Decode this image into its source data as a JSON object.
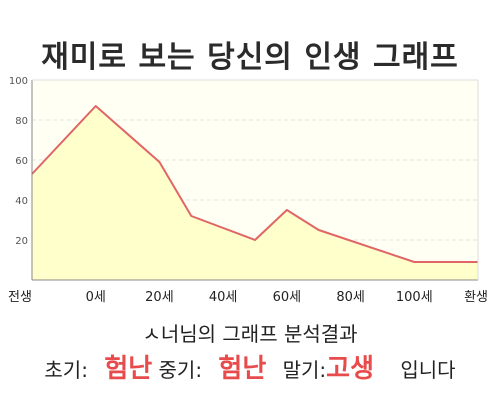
{
  "title": "재미로 보는 당신의 인생 그래프",
  "chart_data": {
    "type": "area",
    "x_ticks": [
      "전생",
      "0세",
      "20세",
      "40세",
      "60세",
      "80세",
      "100세",
      "환생"
    ],
    "y_ticks": [
      "20",
      "40",
      "60",
      "80",
      "100"
    ],
    "ylim": [
      0,
      100
    ],
    "grid": true,
    "points": [
      {
        "x": 0,
        "y": 53
      },
      {
        "x": 1,
        "y": 87
      },
      {
        "x": 2,
        "y": 59
      },
      {
        "x": 2.5,
        "y": 32
      },
      {
        "x": 3.5,
        "y": 20
      },
      {
        "x": 4,
        "y": 35
      },
      {
        "x": 4.5,
        "y": 25
      },
      {
        "x": 6,
        "y": 9
      },
      {
        "x": 7,
        "y": 9
      }
    ],
    "line_color": "#e06666",
    "fill_color": "#ffffcc"
  },
  "result": {
    "heading": "ㅅ너님의 그래프 분석결과",
    "early_label": "초기:",
    "early_value": "험난",
    "mid_label": "중기:",
    "mid_value": "험난",
    "late_label": "말기:",
    "late_value": "고생",
    "ending": "입니다",
    "highlight_color": "#e84b4b"
  }
}
